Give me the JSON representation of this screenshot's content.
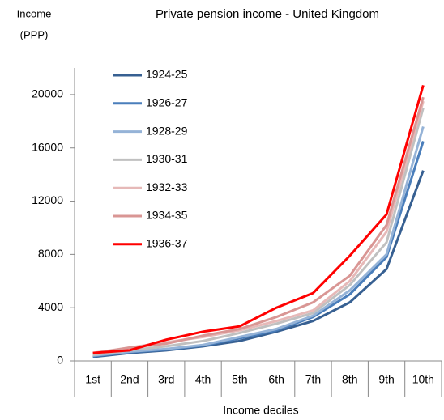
{
  "chart_data": {
    "type": "line",
    "title": "Private pension income - United Kingdom",
    "y_label_line1": "Income",
    "y_label_line2": "(PPP)",
    "x_label": "Income deciles",
    "categories": [
      "1st",
      "2nd",
      "3rd",
      "4th",
      "5th",
      "6th",
      "7th",
      "8th",
      "9th",
      "10th"
    ],
    "series": [
      {
        "name": "1924-25",
        "color": "#376092",
        "values": [
          300,
          600,
          800,
          1100,
          1500,
          2200,
          3000,
          4400,
          6900,
          14300
        ]
      },
      {
        "name": "1926-27",
        "color": "#4a7ebb",
        "values": [
          350,
          650,
          850,
          1150,
          1700,
          2300,
          3300,
          5000,
          7800,
          16500
        ]
      },
      {
        "name": "1928-29",
        "color": "#95b3d7",
        "values": [
          400,
          700,
          900,
          1200,
          1800,
          2400,
          3400,
          5300,
          8000,
          17600
        ]
      },
      {
        "name": "1930-31",
        "color": "#c0c0c0",
        "values": [
          450,
          800,
          1100,
          1500,
          2100,
          2800,
          3600,
          5700,
          8900,
          19000
        ]
      },
      {
        "name": "1932-33",
        "color": "#e6b9b8",
        "values": [
          600,
          1000,
          1400,
          1800,
          2300,
          3000,
          3800,
          6000,
          9700,
          19500
        ]
      },
      {
        "name": "1934-35",
        "color": "#d99694",
        "values": [
          550,
          1000,
          1300,
          1900,
          2400,
          3300,
          4400,
          6400,
          10200,
          19800
        ]
      },
      {
        "name": "1936-37",
        "color": "#ff0000",
        "values": [
          600,
          800,
          1600,
          2200,
          2600,
          4000,
          5100,
          7900,
          11000,
          20700
        ]
      }
    ],
    "ylim": [
      0,
      22000
    ],
    "yticks": [
      0,
      4000,
      8000,
      12000,
      16000,
      20000
    ]
  }
}
